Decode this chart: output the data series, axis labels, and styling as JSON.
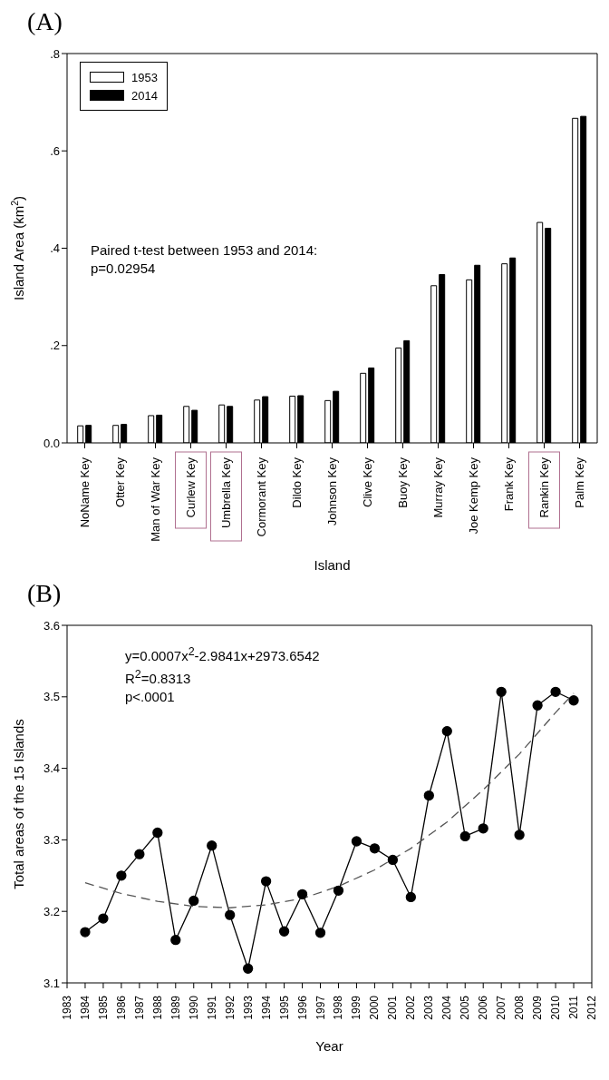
{
  "chart_data": [
    {
      "type": "bar",
      "title": "(A)",
      "xlabel": "Island",
      "ylabel": "Island Area (km$^{2}$)",
      "categories": [
        "NoName Key",
        "Otter Key",
        "Man of War Key",
        "Curlew Key",
        "Umbrella Key",
        "Cormorant Key",
        "Dildo Key",
        "Johnson Key",
        "Clive Key",
        "Buoy Key",
        "Murray Key",
        "Joe Kemp Key",
        "Frank Key",
        "Rankin Key",
        "Palm Key"
      ],
      "series": [
        {
          "name": "1953",
          "color": "#ffffff",
          "values": [
            0.035,
            0.036,
            0.056,
            0.075,
            0.078,
            0.088,
            0.096,
            0.087,
            0.143,
            0.195,
            0.323,
            0.335,
            0.368,
            0.453,
            0.667
          ]
        },
        {
          "name": "2014",
          "color": "#000000",
          "values": [
            0.036,
            0.038,
            0.057,
            0.067,
            0.075,
            0.095,
            0.097,
            0.106,
            0.154,
            0.21,
            0.346,
            0.365,
            0.38,
            0.441,
            0.671
          ]
        }
      ],
      "ylim": [
        0,
        0.8
      ],
      "yticks": [
        {
          "value": 0,
          "label": "0.0"
        },
        {
          "value": 0.2,
          "label": ".2"
        },
        {
          "value": 0.4,
          "label": ".4"
        },
        {
          "value": 0.6,
          "label": ".6"
        },
        {
          "value": 0.8,
          "label": ".8"
        }
      ],
      "legend": "top left",
      "annotations": [
        "Paired t-test between 1953 and 2014:",
        "p=0.02954"
      ]
    },
    {
      "type": "line",
      "title": "(B)",
      "xlabel": "Year",
      "ylabel": "Total areas of the 15 Islands",
      "marker": "circle",
      "line_style": "solid",
      "series": [
        {
          "color": "#000000",
          "x": [
            1984,
            1985,
            1986,
            1987,
            1988,
            1989,
            1990,
            1991,
            1992,
            1993,
            1994,
            1995,
            1996,
            1997,
            1998,
            1999,
            2000,
            2001,
            2002,
            2003,
            2004,
            2005,
            2006,
            2007,
            2008,
            2009,
            2010,
            2011
          ],
          "values": [
            3.171,
            3.19,
            3.25,
            3.28,
            3.31,
            3.16,
            3.215,
            3.292,
            3.195,
            3.12,
            3.242,
            3.172,
            3.224,
            3.17,
            3.229,
            3.298,
            3.288,
            3.272,
            3.22,
            3.362,
            3.452,
            3.305,
            3.316,
            3.507,
            3.307,
            3.488,
            3.507,
            3.495
          ]
        },
        {
          "type": "line",
          "color": "#555555",
          "marker": "none",
          "line_style": "dashed",
          "x": [
            1984,
            1986,
            1988,
            1990,
            1992,
            1994,
            1996,
            1998,
            2000,
            2002,
            2004,
            2006,
            2008,
            2010,
            2011
          ],
          "values": [
            3.24,
            3.225,
            3.214,
            3.207,
            3.205,
            3.209,
            3.218,
            3.235,
            3.258,
            3.288,
            3.325,
            3.37,
            3.42,
            3.478,
            3.505
          ]
        }
      ],
      "xlim": [
        1983,
        2012
      ],
      "xticks": [
        1983,
        1984,
        1985,
        1986,
        1987,
        1988,
        1989,
        1990,
        1991,
        1992,
        1993,
        1994,
        1995,
        1996,
        1997,
        1998,
        1999,
        2000,
        2001,
        2002,
        2003,
        2004,
        2005,
        2006,
        2007,
        2008,
        2009,
        2010,
        2011,
        2012
      ],
      "ylim": [
        3.1,
        3.6
      ],
      "yticks": [
        3.1,
        3.2,
        3.3,
        3.4,
        3.5,
        3.6
      ],
      "annotations": [
        "y=0.0007x$^{2}$-2.9841x+2973.6542",
        "R$^{2}$=0.8313",
        "p<.0001"
      ]
    }
  ]
}
